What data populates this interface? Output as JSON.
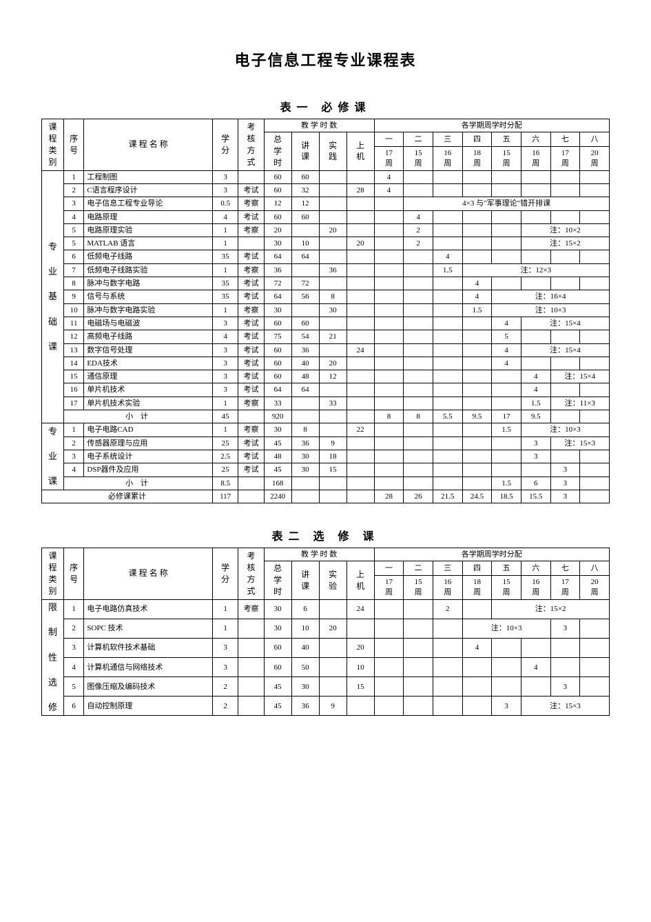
{
  "title": "电子信息工程专业课程表",
  "table1": {
    "caption": "表一  必修课",
    "header": {
      "cat": "课程类别",
      "seq": "序号",
      "name": "课 程 名 称",
      "credit": "学分",
      "exam": "考核方式",
      "hours_group": "教 学 时 数",
      "sem_group": "各学期周学时分配",
      "h_total": "总学时",
      "h_lec": "讲课",
      "h_prac": "实践",
      "h_comp": "上机",
      "sem_num": [
        "一",
        "二",
        "三",
        "四",
        "五",
        "六",
        "七",
        "八"
      ],
      "sem_wk": [
        "17周",
        "15周",
        "16周",
        "18周",
        "15周",
        "16周",
        "17周",
        "20周"
      ]
    },
    "groups": [
      {
        "cat": "专业基础课",
        "rows": [
          {
            "seq": "1",
            "name": "工程制图",
            "credit": "3",
            "exam": "",
            "h": [
              "60",
              "60",
              "",
              ""
            ],
            "s": [
              "4",
              "",
              "",
              "",
              "",
              "",
              "",
              ""
            ],
            "note": ""
          },
          {
            "seq": "2",
            "name": "C语言程序设计",
            "credit": "3",
            "exam": "考试",
            "h": [
              "60",
              "32",
              "",
              "28"
            ],
            "s": [
              "4",
              "",
              "",
              "",
              "",
              "",
              "",
              ""
            ],
            "note": ""
          },
          {
            "seq": "3",
            "name": "电子信息工程专业导论",
            "credit": "0.5",
            "exam": "考察",
            "h": [
              "12",
              "12",
              "",
              ""
            ],
            "s": [
              "",
              "",
              "",
              "",
              "",
              "",
              "",
              ""
            ],
            "note": "4×3 与\"军事理论\"错开排课",
            "note_from": 2
          },
          {
            "seq": "4",
            "name": "电路原理",
            "credit": "4",
            "exam": "考试",
            "h": [
              "60",
              "60",
              "",
              ""
            ],
            "s": [
              "",
              "4",
              "",
              "",
              "",
              "",
              "",
              ""
            ],
            "note": ""
          },
          {
            "seq": "5",
            "name": "电路原理实验",
            "credit": "1",
            "exam": "考察",
            "h": [
              "20",
              "",
              "20",
              ""
            ],
            "s": [
              "",
              "2",
              "",
              "",
              "",
              "",
              "",
              ""
            ],
            "note": "注：10×2",
            "note_from": 6
          },
          {
            "seq": "5",
            "name": "MATLAB 语言",
            "credit": "1",
            "exam": "",
            "h": [
              "30",
              "10",
              "",
              "20"
            ],
            "s": [
              "",
              "2",
              "",
              "",
              "",
              "",
              "",
              ""
            ],
            "note": "注：15×2",
            "note_from": 6
          },
          {
            "seq": "6",
            "name": "低频电子线路",
            "credit": "35",
            "exam": "考试",
            "h": [
              "64",
              "64",
              "",
              ""
            ],
            "s": [
              "",
              "",
              "4",
              "",
              "",
              "",
              "",
              ""
            ],
            "note": ""
          },
          {
            "seq": "7",
            "name": "低频电子线路实验",
            "credit": "1",
            "exam": "考察",
            "h": [
              "36",
              "",
              "36",
              ""
            ],
            "s": [
              "",
              "",
              "1.5",
              "",
              "",
              "",
              "",
              ""
            ],
            "note": "注：12×3",
            "note_from": 4
          },
          {
            "seq": "8",
            "name": "脉冲与数字电路",
            "credit": "35",
            "exam": "考试",
            "h": [
              "72",
              "72",
              "",
              ""
            ],
            "s": [
              "",
              "",
              "",
              "4",
              "",
              "",
              "",
              ""
            ],
            "note": ""
          },
          {
            "seq": "9",
            "name": "信号与系统",
            "credit": "35",
            "exam": "考试",
            "h": [
              "64",
              "56",
              "8",
              ""
            ],
            "s": [
              "",
              "",
              "",
              "4",
              "",
              "",
              "",
              ""
            ],
            "note": "注：16×4",
            "note_from": 5
          },
          {
            "seq": "10",
            "name": "脉冲与数字电路实验",
            "credit": "1",
            "exam": "考察",
            "h": [
              "30",
              "",
              "30",
              ""
            ],
            "s": [
              "",
              "",
              "",
              "1.5",
              "",
              "",
              "",
              ""
            ],
            "note": "注：10×3",
            "note_from": 5
          },
          {
            "seq": "11",
            "name": "电磁场与电磁波",
            "credit": "3",
            "exam": "考试",
            "h": [
              "60",
              "60",
              "",
              ""
            ],
            "s": [
              "",
              "",
              "",
              "",
              "4",
              "",
              "",
              ""
            ],
            "note": "注：15×4",
            "note_from": 6
          },
          {
            "seq": "12",
            "name": "高频电子线路",
            "credit": "4",
            "exam": "考试",
            "h": [
              "75",
              "54",
              "21",
              ""
            ],
            "s": [
              "",
              "",
              "",
              "",
              "5",
              "",
              "",
              ""
            ],
            "note": ""
          },
          {
            "seq": "13",
            "name": "数字信号处理",
            "credit": "3",
            "exam": "考试",
            "h": [
              "60",
              "36",
              "",
              "24"
            ],
            "s": [
              "",
              "",
              "",
              "",
              "4",
              "",
              "",
              ""
            ],
            "note": "注：15×4",
            "note_from": 6
          },
          {
            "seq": "14",
            "name": "EDA技术",
            "credit": "3",
            "exam": "考试",
            "h": [
              "60",
              "40",
              "20",
              ""
            ],
            "s": [
              "",
              "",
              "",
              "",
              "4",
              "",
              "",
              ""
            ],
            "note": ""
          },
          {
            "seq": "15",
            "name": "通信原理",
            "credit": "3",
            "exam": "考试",
            "h": [
              "60",
              "48",
              "12",
              ""
            ],
            "s": [
              "",
              "",
              "",
              "",
              "",
              "4",
              "",
              ""
            ],
            "note": "注：15×4",
            "note_from": 7
          },
          {
            "seq": "16",
            "name": "单片机技术",
            "credit": "3",
            "exam": "考试",
            "h": [
              "64",
              "64",
              "",
              ""
            ],
            "s": [
              "",
              "",
              "",
              "",
              "",
              "4",
              "",
              ""
            ],
            "note": ""
          },
          {
            "seq": "17",
            "name": "单片机技术实验",
            "credit": "1",
            "exam": "考察",
            "h": [
              "33",
              "",
              "33",
              ""
            ],
            "s": [
              "",
              "",
              "",
              "",
              "",
              "1.5",
              "",
              ""
            ],
            "note": "注：11×3",
            "note_from": 7
          }
        ],
        "subtotal": {
          "label": "小    计",
          "credit": "45",
          "exam": "",
          "h": [
            "920",
            "",
            "",
            ""
          ],
          "s": [
            "8",
            "8",
            "5.5",
            "9.5",
            "17",
            "9.5",
            "",
            ""
          ]
        }
      },
      {
        "cat": "专业课",
        "rows": [
          {
            "seq": "1",
            "name": "电子电路CAD",
            "credit": "1",
            "exam": "考察",
            "h": [
              "30",
              "8",
              "",
              "22"
            ],
            "s": [
              "",
              "",
              "",
              "",
              "1.5",
              "",
              "",
              ""
            ],
            "note": "注：10×3",
            "note_from": 6
          },
          {
            "seq": "2",
            "name": "传感器原理与应用",
            "credit": "25",
            "exam": "考试",
            "h": [
              "45",
              "36",
              "9",
              ""
            ],
            "s": [
              "",
              "",
              "",
              "",
              "",
              "3",
              "",
              ""
            ],
            "note": "注：15×3",
            "note_from": 7
          },
          {
            "seq": "3",
            "name": "电子系统设计",
            "credit": "2.5",
            "exam": "考试",
            "h": [
              "48",
              "30",
              "18",
              ""
            ],
            "s": [
              "",
              "",
              "",
              "",
              "",
              "3",
              "",
              ""
            ],
            "note": ""
          },
          {
            "seq": "4",
            "name": "DSP器件及应用",
            "credit": "25",
            "exam": "考试",
            "h": [
              "45",
              "30",
              "15",
              ""
            ],
            "s": [
              "",
              "",
              "",
              "",
              "",
              "",
              "3",
              ""
            ],
            "note": ""
          }
        ],
        "subtotal": {
          "label": "小    计",
          "credit": "8.5",
          "exam": "",
          "h": [
            "168",
            "",
            "",
            ""
          ],
          "s": [
            "",
            "",
            "",
            "",
            "1.5",
            "6",
            "3",
            ""
          ]
        }
      }
    ],
    "grand": {
      "label": "必修课累计",
      "credit": "117",
      "exam": "",
      "h": [
        "2240",
        "",
        "",
        ""
      ],
      "s": [
        "28",
        "26",
        "21.5",
        "24.5",
        "18.5",
        "15.5",
        "3",
        ""
      ]
    }
  },
  "table2": {
    "caption": "表二  选 修 课",
    "header": {
      "cat": "课程类别",
      "seq": "序号",
      "name": "课 程 名 称",
      "credit": "学分",
      "exam": "考核方式",
      "hours_group": "教 学 时 数",
      "sem_group": "各学期周学时分配",
      "h_total": "总学时",
      "h_lec": "讲课",
      "h_prac": "实验",
      "h_comp": "上机",
      "sem_num": [
        "一",
        "二",
        "三",
        "四",
        "五",
        "六",
        "七",
        "八"
      ],
      "sem_wk": [
        "17周",
        "15周",
        "16周",
        "18周",
        "15周",
        "16周",
        "17周",
        "20周"
      ]
    },
    "groups": [
      {
        "cat": "限制性选修",
        "rows": [
          {
            "seq": "1",
            "name": "电子电路仿真技术",
            "credit": "1",
            "exam": "考察",
            "h": [
              "30",
              "6",
              "",
              "24"
            ],
            "s": [
              "",
              "",
              "2",
              "",
              "",
              "",
              "",
              ""
            ],
            "note": "注：15×2",
            "note_from": 5
          },
          {
            "seq": "2",
            "name": "SOPC 技术",
            "credit": "1",
            "exam": "",
            "h": [
              "30",
              "10",
              "20",
              ""
            ],
            "s": [
              "",
              "",
              "",
              "",
              "",
              "",
              "3",
              ""
            ],
            "note": "注：10×3",
            "note_from": 4,
            "note_to": 6
          },
          {
            "seq": "3",
            "name": "计算机软件技术基础",
            "credit": "3",
            "exam": "",
            "h": [
              "60",
              "40",
              "",
              "20"
            ],
            "s": [
              "",
              "",
              "",
              "4",
              "",
              "",
              "",
              ""
            ],
            "note": ""
          },
          {
            "seq": "4",
            "name": "计算机通信与网络技术",
            "credit": "3",
            "exam": "",
            "h": [
              "60",
              "50",
              "",
              "10"
            ],
            "s": [
              "",
              "",
              "",
              "",
              "",
              "4",
              "",
              ""
            ],
            "note": ""
          },
          {
            "seq": "5",
            "name": "图像压缩及编码技术",
            "credit": "2",
            "exam": "",
            "h": [
              "45",
              "30",
              "",
              "15"
            ],
            "s": [
              "",
              "",
              "",
              "",
              "",
              "",
              "3",
              ""
            ],
            "note": ""
          },
          {
            "seq": "6",
            "name": "自动控制原理",
            "credit": "2",
            "exam": "",
            "h": [
              "45",
              "36",
              "9",
              ""
            ],
            "s": [
              "",
              "",
              "",
              "",
              "3",
              "",
              "",
              ""
            ],
            "note": "注：15×3",
            "note_from": 6
          }
        ]
      }
    ]
  }
}
